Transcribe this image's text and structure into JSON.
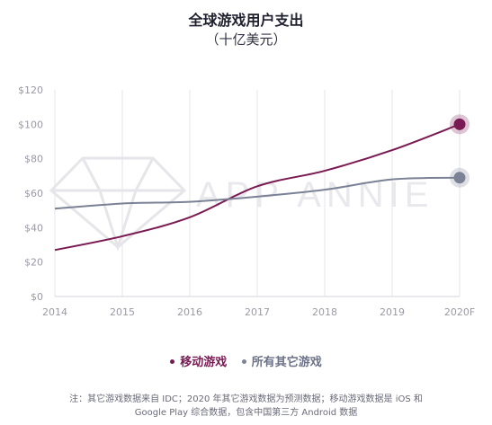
{
  "chart_data": {
    "type": "line",
    "title": "全球游戏用户支出",
    "subtitle": "（十亿美元）",
    "categories": [
      "2014",
      "2015",
      "2016",
      "2017",
      "2018",
      "2019",
      "2020F"
    ],
    "y_ticks": [
      "$0",
      "$20",
      "$40",
      "$60",
      "$80",
      "$100",
      "$120"
    ],
    "ylim": [
      0,
      120
    ],
    "grid": "vertical",
    "watermark": "APP ANNIE",
    "series": [
      {
        "name": "移动游戏",
        "color": "#7a1a52",
        "values": [
          27,
          35,
          46,
          64,
          73,
          85,
          100
        ]
      },
      {
        "name": "所有其它游戏",
        "color": "#7c8296",
        "values": [
          51,
          54,
          55,
          58,
          62,
          68,
          69
        ]
      }
    ],
    "legend_position": "bottom",
    "footnote_lines": [
      "注：其它游戏数据来自 IDC；2020 年其它游戏数据为预测数据；移动游戏数据是 iOS 和",
      "Google Play 综合数据，包含中国第三方 Android 数据"
    ]
  }
}
